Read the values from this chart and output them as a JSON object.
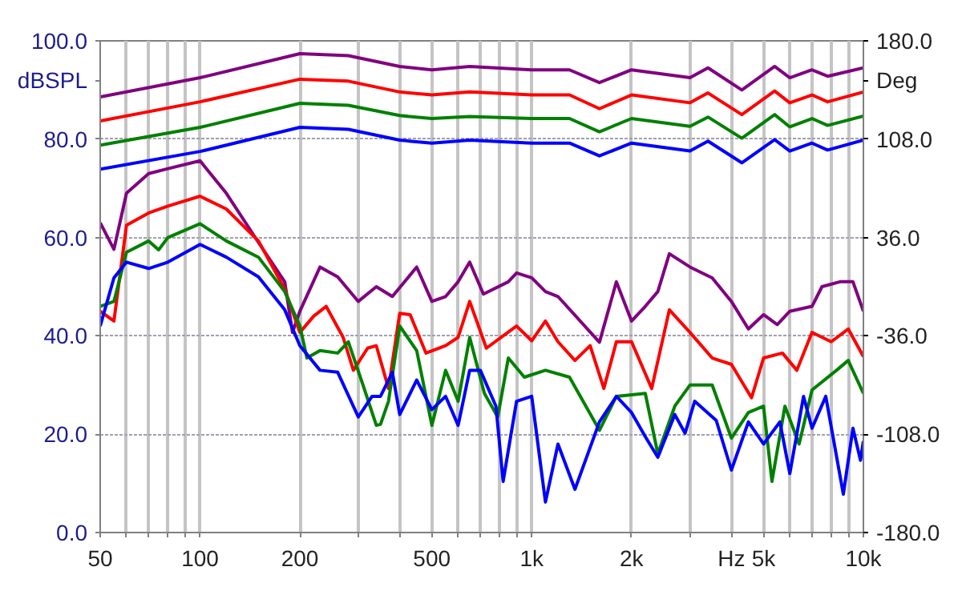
{
  "chart_data": {
    "type": "line",
    "ylabel": "dBSPL",
    "y2label": "Deg",
    "log": "x",
    "grid": true,
    "marker": "none",
    "line_style": "solid",
    "xlim": [
      50,
      10000
    ],
    "ylim": [
      0,
      100
    ],
    "y2lim": [
      -180,
      180
    ],
    "xticks": [
      50,
      {
        "value": 60,
        "label": null
      },
      {
        "value": 70,
        "label": null
      },
      {
        "value": 80,
        "label": null
      },
      {
        "value": 90,
        "label": null
      },
      100,
      200,
      {
        "value": 300,
        "label": null
      },
      {
        "value": 400,
        "label": null
      },
      500,
      {
        "value": 600,
        "label": null
      },
      {
        "value": 700,
        "label": null
      },
      {
        "value": 800,
        "label": null
      },
      {
        "value": 900,
        "label": null
      },
      {
        "value": 1000,
        "label": "1k"
      },
      {
        "value": 2000,
        "label": "2k"
      },
      {
        "value": 3000,
        "label": null
      },
      {
        "value": 4000,
        "label": "Hz"
      },
      {
        "value": 5000,
        "label": "5k"
      },
      {
        "value": 6000,
        "label": null
      },
      {
        "value": 7000,
        "label": null
      },
      {
        "value": 8000,
        "label": null
      },
      {
        "value": 9000,
        "label": null
      },
      {
        "value": 10000,
        "label": "10k"
      }
    ],
    "yticks": [
      {
        "value": 0,
        "label": "0.0"
      },
      {
        "value": 20,
        "label": "20.0"
      },
      {
        "value": 40,
        "label": "40.0"
      },
      {
        "value": 60,
        "label": "60.0"
      },
      {
        "value": 80,
        "label": "80.0"
      },
      {
        "value": 100,
        "label": "100.0"
      }
    ],
    "y2ticks": [
      {
        "value": -180,
        "label": "-180.0"
      },
      {
        "value": -108,
        "label": "-108.0"
      },
      {
        "value": -36,
        "label": "-36.0"
      },
      {
        "value": 36,
        "label": "36.0"
      },
      {
        "value": 108,
        "label": "108.0"
      },
      {
        "value": 180,
        "label": "180.0"
      }
    ],
    "series": [
      {
        "color": "#800080",
        "x": [
          50,
          100,
          200,
          280,
          400,
          500,
          650,
          1000,
          1300,
          1600,
          2000,
          3000,
          3400,
          4300,
          5400,
          6000,
          7000,
          7800,
          10000
        ],
        "values": [
          88.6,
          92.5,
          97.4,
          97,
          94.8,
          94.1,
          94.8,
          94.1,
          94.1,
          91.5,
          94.1,
          92.5,
          94.5,
          90,
          94.8,
          92.5,
          94.1,
          92.8,
          94.5
        ]
      },
      {
        "color": "#ff0000",
        "x": [
          50,
          100,
          200,
          280,
          400,
          500,
          650,
          1000,
          1300,
          1600,
          2000,
          3000,
          3400,
          4300,
          5400,
          6000,
          7000,
          7800,
          10000
        ],
        "values": [
          83.7,
          87.6,
          92.2,
          91.8,
          89.6,
          89,
          89.6,
          89,
          89,
          86.2,
          89,
          87.4,
          89.4,
          85,
          89.8,
          87.4,
          89,
          87.6,
          89.6
        ]
      },
      {
        "color": "#008000",
        "x": [
          50,
          100,
          200,
          280,
          400,
          500,
          650,
          1000,
          1300,
          1600,
          2000,
          3000,
          3400,
          4300,
          5400,
          6000,
          7000,
          7800,
          10000
        ],
        "values": [
          78.8,
          82.4,
          87.3,
          86.9,
          84.8,
          84.2,
          84.6,
          84.2,
          84.2,
          81.5,
          84.2,
          82.6,
          84.5,
          80.2,
          85,
          82.5,
          84.2,
          82.8,
          84.7
        ]
      },
      {
        "color": "#0000ff",
        "x": [
          50,
          100,
          200,
          280,
          400,
          500,
          650,
          1000,
          1300,
          1600,
          2000,
          3000,
          3400,
          4300,
          5400,
          6000,
          7000,
          7800,
          10000
        ],
        "values": [
          73.9,
          77.5,
          82.4,
          82,
          79.8,
          79.2,
          79.8,
          79.2,
          79.2,
          76.6,
          79.2,
          77.6,
          79.6,
          75.2,
          79.9,
          77.6,
          79.2,
          77.8,
          79.8
        ]
      },
      {
        "color": "#800080",
        "x": [
          50,
          55,
          60,
          70,
          80,
          100,
          120,
          150,
          180,
          190,
          200,
          230,
          260,
          300,
          340,
          380,
          450,
          500,
          550,
          600,
          650,
          715,
          850,
          900,
          1000,
          1100,
          1200,
          1600,
          1800,
          2000,
          2200,
          2400,
          2600,
          3000,
          3500,
          4000,
          4500,
          5000,
          5500,
          6000,
          7000,
          7500,
          8500,
          9300,
          10000
        ],
        "values": [
          63,
          57.6,
          69,
          73,
          74,
          75.6,
          69,
          59,
          51,
          40.7,
          45,
          54,
          52,
          47,
          50,
          48,
          54,
          47,
          48,
          51,
          55,
          48.5,
          51,
          52.8,
          51.8,
          49,
          48,
          38.7,
          51,
          43,
          46,
          49,
          56.7,
          54,
          51.8,
          47,
          41.4,
          44.3,
          42.3,
          45,
          46,
          50,
          51,
          51,
          45
        ]
      },
      {
        "color": "#ff0000",
        "x": [
          50,
          55,
          60,
          70,
          80,
          100,
          120,
          150,
          180,
          200,
          220,
          240,
          270,
          290,
          320,
          340,
          370,
          400,
          430,
          480,
          550,
          600,
          650,
          730,
          900,
          1000,
          1100,
          1200,
          1350,
          1500,
          1650,
          1800,
          2000,
          2300,
          2600,
          3000,
          3500,
          4000,
          4600,
          5000,
          5700,
          6300,
          7000,
          8000,
          9000,
          10000
        ],
        "values": [
          45,
          43,
          62.5,
          65,
          66.4,
          68.4,
          65.8,
          59.3,
          49.5,
          40.7,
          44,
          46,
          39.7,
          33,
          37.5,
          38,
          29.3,
          44.6,
          44.3,
          36.5,
          38,
          39.7,
          47,
          37.5,
          42,
          39,
          43,
          38.8,
          35,
          38,
          29.3,
          38.8,
          38.8,
          29.3,
          45.3,
          40.7,
          35.5,
          34.2,
          27.4,
          35.5,
          36.5,
          33,
          40.7,
          38.8,
          41.4,
          35.8
        ]
      },
      {
        "color": "#008000",
        "x": [
          50,
          55,
          60,
          70,
          75,
          80,
          100,
          120,
          150,
          180,
          200,
          210,
          230,
          260,
          280,
          310,
          340,
          350,
          370,
          400,
          450,
          500,
          550,
          600,
          650,
          720,
          790,
          850,
          950,
          1100,
          1300,
          1600,
          1800,
          2200,
          2400,
          2700,
          3000,
          3500,
          4000,
          4500,
          5000,
          5300,
          5800,
          6400,
          7000,
          8300,
          9000,
          10000
        ],
        "values": [
          46,
          47,
          57,
          59.3,
          57.5,
          60,
          62.8,
          59.3,
          56,
          49,
          42,
          35.5,
          37,
          36.5,
          38.8,
          30,
          21.8,
          22,
          26.7,
          42,
          37,
          21.8,
          33,
          26.7,
          39.7,
          28.3,
          23.5,
          35.5,
          31.6,
          33,
          31.6,
          20.8,
          27.7,
          28.3,
          16,
          25.7,
          30,
          30,
          19.2,
          24.4,
          25.7,
          10.4,
          25.7,
          18,
          29,
          33,
          35,
          28.3
        ]
      },
      {
        "color": "#0000ff",
        "x": [
          50,
          55,
          60,
          70,
          80,
          100,
          120,
          150,
          180,
          200,
          230,
          260,
          300,
          330,
          350,
          380,
          400,
          450,
          500,
          550,
          600,
          650,
          700,
          780,
          820,
          900,
          1000,
          1100,
          1200,
          1350,
          1600,
          1800,
          2000,
          2200,
          2400,
          2700,
          2900,
          3100,
          3600,
          4000,
          4500,
          5000,
          5600,
          6000,
          6600,
          7000,
          7700,
          8700,
          9300,
          9800,
          10000
        ],
        "values": [
          42,
          51.8,
          55,
          53.7,
          55,
          58.6,
          56,
          52,
          45.3,
          38,
          33,
          32.6,
          23.5,
          27.7,
          27.7,
          32.6,
          24,
          31,
          25,
          27.7,
          21.8,
          33,
          33,
          25.7,
          10.4,
          26.7,
          27.7,
          6.2,
          18,
          8.8,
          22.5,
          27.7,
          24.4,
          19.5,
          15.3,
          24,
          20.2,
          26.7,
          22.8,
          12.7,
          22.5,
          18,
          22.5,
          12,
          27.7,
          21.2,
          27.7,
          7.8,
          21.2,
          14.7,
          18.6
        ]
      }
    ]
  }
}
